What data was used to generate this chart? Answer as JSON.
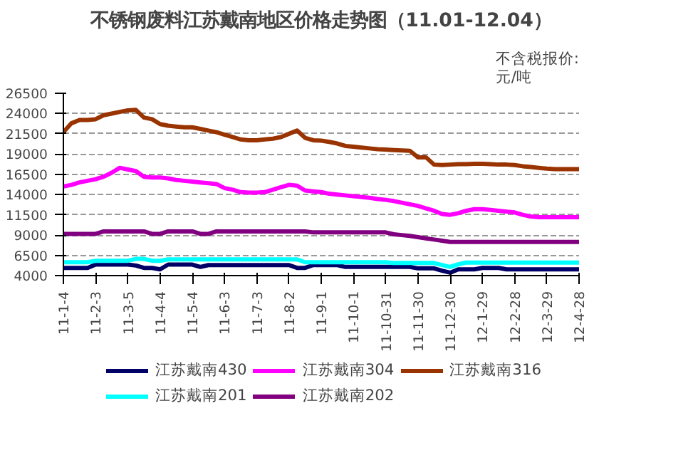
{
  "chart_data": {
    "type": "line",
    "title": "不锈钢废料江苏戴南地区价格走势图（11.01-12.04）",
    "ylabel": "不含税报价:\n元/吨",
    "categories": [
      "11-1-4",
      null,
      null,
      null,
      "11-2-3",
      null,
      null,
      null,
      "11-3-5",
      null,
      null,
      null,
      "11-4-4",
      null,
      null,
      null,
      "11-5-4",
      null,
      null,
      null,
      "11-6-3",
      null,
      null,
      null,
      "11-7-3",
      null,
      null,
      null,
      "11-8-2",
      null,
      null,
      null,
      "11-9-1",
      null,
      null,
      null,
      "11-10-1",
      null,
      null,
      null,
      "11-10-31",
      null,
      null,
      null,
      "11-11-30",
      null,
      null,
      null,
      "11-12-30",
      null,
      null,
      null,
      "12-1-29",
      null,
      null,
      null,
      "12-2-28",
      null,
      null,
      null,
      "12-3-29",
      null,
      null,
      null,
      "12-4-28"
    ],
    "series": [
      {
        "name": "江苏戴南430",
        "color": "#000066",
        "values": [
          4950,
          4950,
          4950,
          4950,
          5360,
          5360,
          5360,
          5360,
          5360,
          5240,
          4950,
          4950,
          4770,
          5360,
          5360,
          5360,
          5360,
          5070,
          5300,
          5300,
          5300,
          5300,
          5300,
          5300,
          5300,
          5300,
          5300,
          5300,
          5300,
          4950,
          4950,
          5300,
          5300,
          5300,
          5300,
          5070,
          5070,
          5070,
          5070,
          5070,
          5070,
          5070,
          5070,
          5070,
          4890,
          4890,
          4890,
          4600,
          4360,
          4770,
          4770,
          4770,
          4950,
          4950,
          4950,
          4770,
          4770,
          4770,
          4770,
          4770,
          4770,
          4770,
          4770,
          4770,
          4770
        ]
      },
      {
        "name": "江苏戴南304",
        "color": "#ff00ff",
        "values": [
          15000,
          15200,
          15500,
          15700,
          15900,
          16200,
          16700,
          17300,
          17100,
          16900,
          16200,
          16100,
          16100,
          16000,
          15800,
          15700,
          15600,
          15500,
          15400,
          15300,
          14800,
          14600,
          14300,
          14250,
          14250,
          14300,
          14600,
          14900,
          15200,
          15100,
          14500,
          14400,
          14300,
          14100,
          14000,
          13900,
          13800,
          13700,
          13600,
          13450,
          13350,
          13200,
          13000,
          12800,
          12600,
          12300,
          12000,
          11600,
          11500,
          11700,
          12000,
          12200,
          12200,
          12100,
          12000,
          11900,
          11800,
          11500,
          11300,
          11200,
          11200,
          11200,
          11200,
          11200,
          11200
        ]
      },
      {
        "name": "江苏戴南316",
        "color": "#993300",
        "values": [
          21700,
          22800,
          23200,
          23200,
          23300,
          23800,
          24000,
          24200,
          24400,
          24450,
          23500,
          23300,
          22700,
          22500,
          22400,
          22300,
          22300,
          22100,
          21900,
          21700,
          21400,
          21100,
          20800,
          20700,
          20700,
          20800,
          20900,
          21100,
          21500,
          21900,
          21000,
          20700,
          20650,
          20500,
          20300,
          20000,
          19900,
          19800,
          19700,
          19600,
          19550,
          19500,
          19450,
          19400,
          18600,
          18600,
          17700,
          17650,
          17700,
          17750,
          17750,
          17800,
          17800,
          17750,
          17700,
          17700,
          17650,
          17500,
          17400,
          17300,
          17200,
          17150,
          17150,
          17150,
          17150
        ]
      },
      {
        "name": "江苏戴南201",
        "color": "#00ffff",
        "values": [
          5650,
          5650,
          5650,
          5650,
          5830,
          5830,
          5830,
          5830,
          5830,
          6060,
          6060,
          5830,
          5830,
          6000,
          6000,
          6000,
          6000,
          6000,
          6000,
          6000,
          6000,
          6000,
          6000,
          6000,
          6000,
          6000,
          6000,
          6000,
          6000,
          6000,
          5650,
          5650,
          5650,
          5650,
          5650,
          5650,
          5650,
          5650,
          5650,
          5650,
          5650,
          5550,
          5550,
          5550,
          5550,
          5550,
          5550,
          5300,
          5070,
          5400,
          5600,
          5600,
          5600,
          5600,
          5600,
          5600,
          5600,
          5600,
          5600,
          5600,
          5600,
          5600,
          5600,
          5600,
          5600
        ]
      },
      {
        "name": "江苏戴南202",
        "color": "#800080",
        "values": [
          9150,
          9150,
          9150,
          9150,
          9150,
          9450,
          9450,
          9450,
          9450,
          9450,
          9450,
          9150,
          9150,
          9450,
          9450,
          9450,
          9450,
          9150,
          9150,
          9450,
          9450,
          9450,
          9450,
          9450,
          9450,
          9450,
          9450,
          9450,
          9450,
          9450,
          9450,
          9330,
          9330,
          9330,
          9330,
          9330,
          9330,
          9330,
          9330,
          9330,
          9330,
          9100,
          9000,
          8900,
          8750,
          8600,
          8450,
          8300,
          8160,
          8160,
          8160,
          8160,
          8160,
          8160,
          8160,
          8160,
          8160,
          8160,
          8160,
          8160,
          8160,
          8160,
          8160,
          8160,
          8160
        ]
      }
    ],
    "ylim": [
      4000,
      26500
    ],
    "yticks": [
      4000,
      6500,
      9000,
      11500,
      14000,
      16500,
      19000,
      21500,
      24000,
      26500
    ],
    "grid": "y",
    "legend": "bottom",
    "line_style": "solid",
    "marker": "none"
  }
}
